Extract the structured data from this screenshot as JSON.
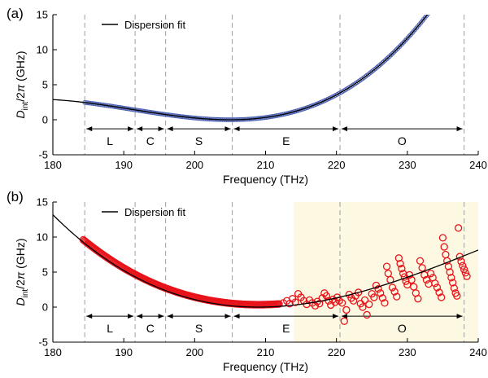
{
  "chart_data": [
    {
      "type": "scatter",
      "panel_label": "(a)",
      "xlabel": "Frequency (THz)",
      "ylabel": "D_int/2π (GHz)",
      "xlim": [
        180,
        240
      ],
      "ylim": [
        -5,
        15
      ],
      "xticks": [
        180,
        190,
        200,
        210,
        220,
        230,
        240
      ],
      "yticks": [
        -5,
        0,
        5,
        10,
        15
      ],
      "grid": false,
      "legend": {
        "position": "top-left",
        "entries": [
          "Dispersion fit"
        ]
      },
      "band_boundaries_thz": [
        184.5,
        191.6,
        195.9,
        205.3,
        220.5,
        238.0
      ],
      "bands": [
        {
          "label": "L",
          "from": 184.5,
          "to": 191.6
        },
        {
          "label": "C",
          "from": 191.6,
          "to": 195.9
        },
        {
          "label": "S",
          "from": 195.9,
          "to": 205.3
        },
        {
          "label": "E",
          "from": 205.3,
          "to": 220.5
        },
        {
          "label": "O",
          "from": 220.5,
          "to": 238.0
        }
      ],
      "series": [
        {
          "name": "Dispersion fit",
          "kind": "line",
          "color": "#000000",
          "model": {
            "form": "a*(f-f0)^2 + c*(f-f0)^3",
            "f0": 205,
            "a": 0.0116,
            "c": 0.00028
          },
          "x_range": [
            180,
            238
          ]
        },
        {
          "kind": "markers",
          "marker": "open-circle",
          "color": "#4a5fb0",
          "x_range": [
            184.5,
            238.0
          ],
          "follows_fit": true,
          "scatter_ghz": 0.0
        }
      ]
    },
    {
      "type": "scatter",
      "panel_label": "(b)",
      "xlabel": "Frequency (THz)",
      "ylabel": "D_int/2π (GHz)",
      "xlim": [
        180,
        240
      ],
      "ylim": [
        -5,
        15
      ],
      "xticks": [
        180,
        190,
        200,
        210,
        220,
        230,
        240
      ],
      "yticks": [
        -5,
        0,
        5,
        10,
        15
      ],
      "grid": false,
      "legend": {
        "position": "top-left",
        "entries": [
          "Dispersion fit"
        ]
      },
      "highlight_region": {
        "from": 214,
        "to": 240,
        "color": "#fdf8e1"
      },
      "band_boundaries_thz": [
        184.5,
        191.6,
        195.9,
        205.3,
        220.5,
        238.0
      ],
      "bands": [
        {
          "label": "L",
          "from": 184.5,
          "to": 191.6
        },
        {
          "label": "C",
          "from": 191.6,
          "to": 195.9
        },
        {
          "label": "S",
          "from": 195.9,
          "to": 205.3
        },
        {
          "label": "E",
          "from": 205.3,
          "to": 220.5
        },
        {
          "label": "O",
          "from": 220.5,
          "to": 238.0
        }
      ],
      "series": [
        {
          "name": "Dispersion fit",
          "kind": "line",
          "color": "#000000",
          "model": {
            "form": "a*(f-f0)^2 + c*(f-f0)^3",
            "f0": 209,
            "a": 0.0122,
            "c": -0.00012
          },
          "x_range": [
            180,
            240
          ]
        },
        {
          "kind": "markers",
          "marker": "open-circle",
          "color": "#e8141b",
          "segments": [
            {
              "x_range": [
                184.3,
                212.0
              ],
              "follows": {
                "form": "a*(f-f0)^2 + c*(f-f0)^3",
                "f0": 209,
                "a": 0.0122,
                "c": -0.00012
              },
              "offset_ghz": 0.35
            }
          ],
          "scattered_points": [
            [
              212.5,
              0.6
            ],
            [
              213.0,
              0.9
            ],
            [
              213.4,
              0.5
            ],
            [
              213.8,
              1.2
            ],
            [
              214.2,
              0.7
            ],
            [
              214.6,
              1.9
            ],
            [
              215.0,
              1.4
            ],
            [
              215.4,
              0.9
            ],
            [
              215.8,
              0.4
            ],
            [
              216.2,
              1.0
            ],
            [
              216.6,
              0.6
            ],
            [
              217.0,
              0.2
            ],
            [
              217.3,
              0.8
            ],
            [
              217.6,
              0.5
            ],
            [
              218.0,
              1.3
            ],
            [
              218.3,
              2.0
            ],
            [
              218.6,
              1.6
            ],
            [
              218.9,
              0.9
            ],
            [
              219.2,
              0.3
            ],
            [
              219.5,
              1.1
            ],
            [
              219.8,
              0.7
            ],
            [
              220.1,
              1.4
            ],
            [
              220.4,
              0.9
            ],
            [
              220.8,
              0.6
            ],
            [
              221.1,
              -2.0
            ],
            [
              221.4,
              -0.4
            ],
            [
              221.8,
              1.8
            ],
            [
              222.1,
              1.3
            ],
            [
              222.4,
              0.9
            ],
            [
              222.7,
              1.6
            ],
            [
              223.1,
              2.1
            ],
            [
              223.4,
              0.5
            ],
            [
              223.7,
              0.0
            ],
            [
              224.0,
              1.0
            ],
            [
              224.3,
              -1.1
            ],
            [
              224.6,
              0.4
            ],
            [
              225.0,
              1.9
            ],
            [
              225.3,
              1.4
            ],
            [
              225.6,
              3.1
            ],
            [
              225.9,
              2.6
            ],
            [
              226.2,
              2.0
            ],
            [
              226.5,
              1.3
            ],
            [
              226.8,
              0.6
            ],
            [
              227.1,
              5.8
            ],
            [
              227.3,
              4.8
            ],
            [
              227.6,
              3.9
            ],
            [
              227.9,
              2.8
            ],
            [
              228.2,
              2.2
            ],
            [
              228.5,
              1.5
            ],
            [
              228.8,
              7.0
            ],
            [
              229.0,
              6.2
            ],
            [
              229.2,
              5.5
            ],
            [
              229.4,
              4.8
            ],
            [
              229.6,
              4.3
            ],
            [
              229.8,
              3.7
            ],
            [
              230.0,
              3.2
            ],
            [
              230.3,
              4.6
            ],
            [
              230.6,
              3.9
            ],
            [
              230.9,
              2.9
            ],
            [
              231.2,
              2.0
            ],
            [
              231.5,
              1.2
            ],
            [
              231.8,
              6.6
            ],
            [
              232.1,
              5.6
            ],
            [
              232.4,
              4.6
            ],
            [
              232.7,
              3.9
            ],
            [
              233.0,
              3.3
            ],
            [
              233.3,
              4.8
            ],
            [
              233.6,
              4.2
            ],
            [
              233.9,
              3.4
            ],
            [
              234.2,
              2.8
            ],
            [
              234.5,
              2.1
            ],
            [
              234.8,
              1.4
            ],
            [
              235.0,
              9.9
            ],
            [
              235.2,
              8.6
            ],
            [
              235.4,
              7.5
            ],
            [
              235.6,
              6.6
            ],
            [
              235.8,
              5.8
            ],
            [
              236.0,
              5.0
            ],
            [
              236.2,
              4.2
            ],
            [
              236.4,
              3.5
            ],
            [
              236.6,
              2.7
            ],
            [
              236.8,
              2.0
            ],
            [
              237.0,
              1.6
            ],
            [
              237.2,
              11.3
            ],
            [
              237.4,
              7.2
            ],
            [
              237.6,
              6.5
            ],
            [
              237.8,
              5.9
            ],
            [
              238.0,
              5.4
            ],
            [
              238.2,
              4.9
            ],
            [
              238.4,
              4.4
            ]
          ]
        }
      ]
    }
  ]
}
